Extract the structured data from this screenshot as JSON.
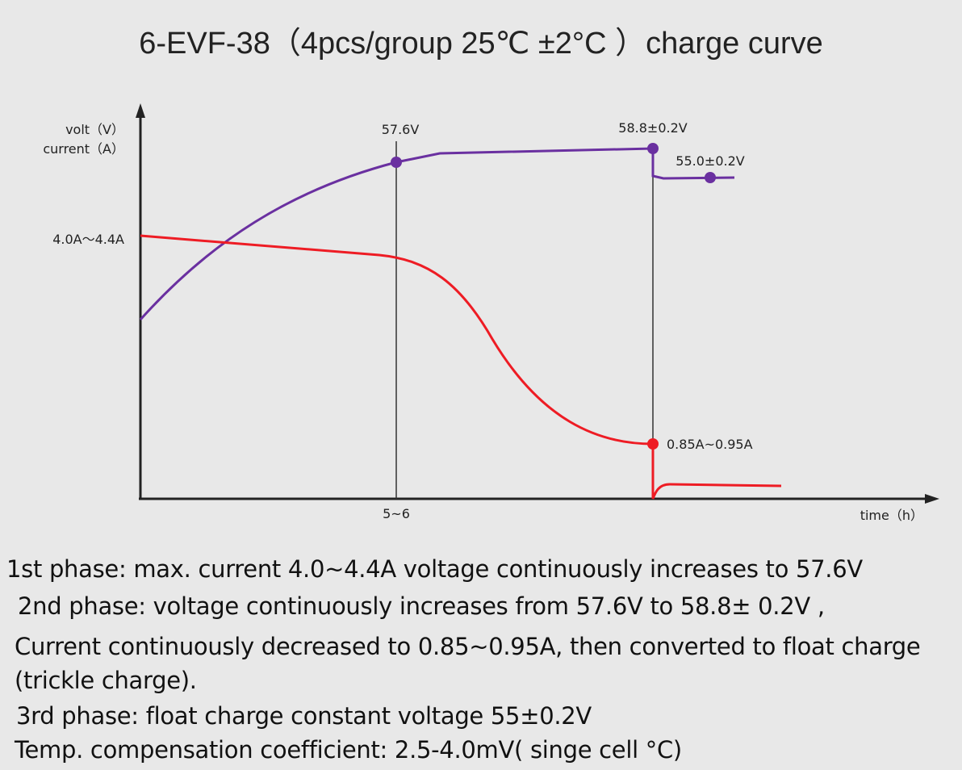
{
  "chart_data": {
    "type": "line",
    "title": "6-EVF-38（4pcs/group  25℃ ±2°C ）charge curve",
    "ylabel_line1": "volt（V）",
    "ylabel_line2": "current（A）",
    "xlabel": "time（h）",
    "x_marker_label": "5~6",
    "series": [
      {
        "name": "voltage",
        "color": "#6a30a0",
        "annotations": [
          "57.6V",
          "58.8±0.2V",
          "55.0±0.2V"
        ]
      },
      {
        "name": "current",
        "color": "#ee1c24",
        "annotations": [
          "4.0A～4.4A",
          "0.85A~0.95A"
        ]
      }
    ]
  },
  "notes": [
    "1st phase: max. current 4.0~4.4A  voltage continuously increases to 57.6V",
    "2nd phase: voltage continuously increases from 57.6V to 58.8± 0.2V ,",
    "Current continuously decreased to 0.85~0.95A, then converted to float charge",
    "(trickle charge).",
    "3rd phase: float charge constant voltage 55±0.2V",
    "Temp. compensation  coefficient:  2.5-4.0mV( singe cell °C)"
  ]
}
